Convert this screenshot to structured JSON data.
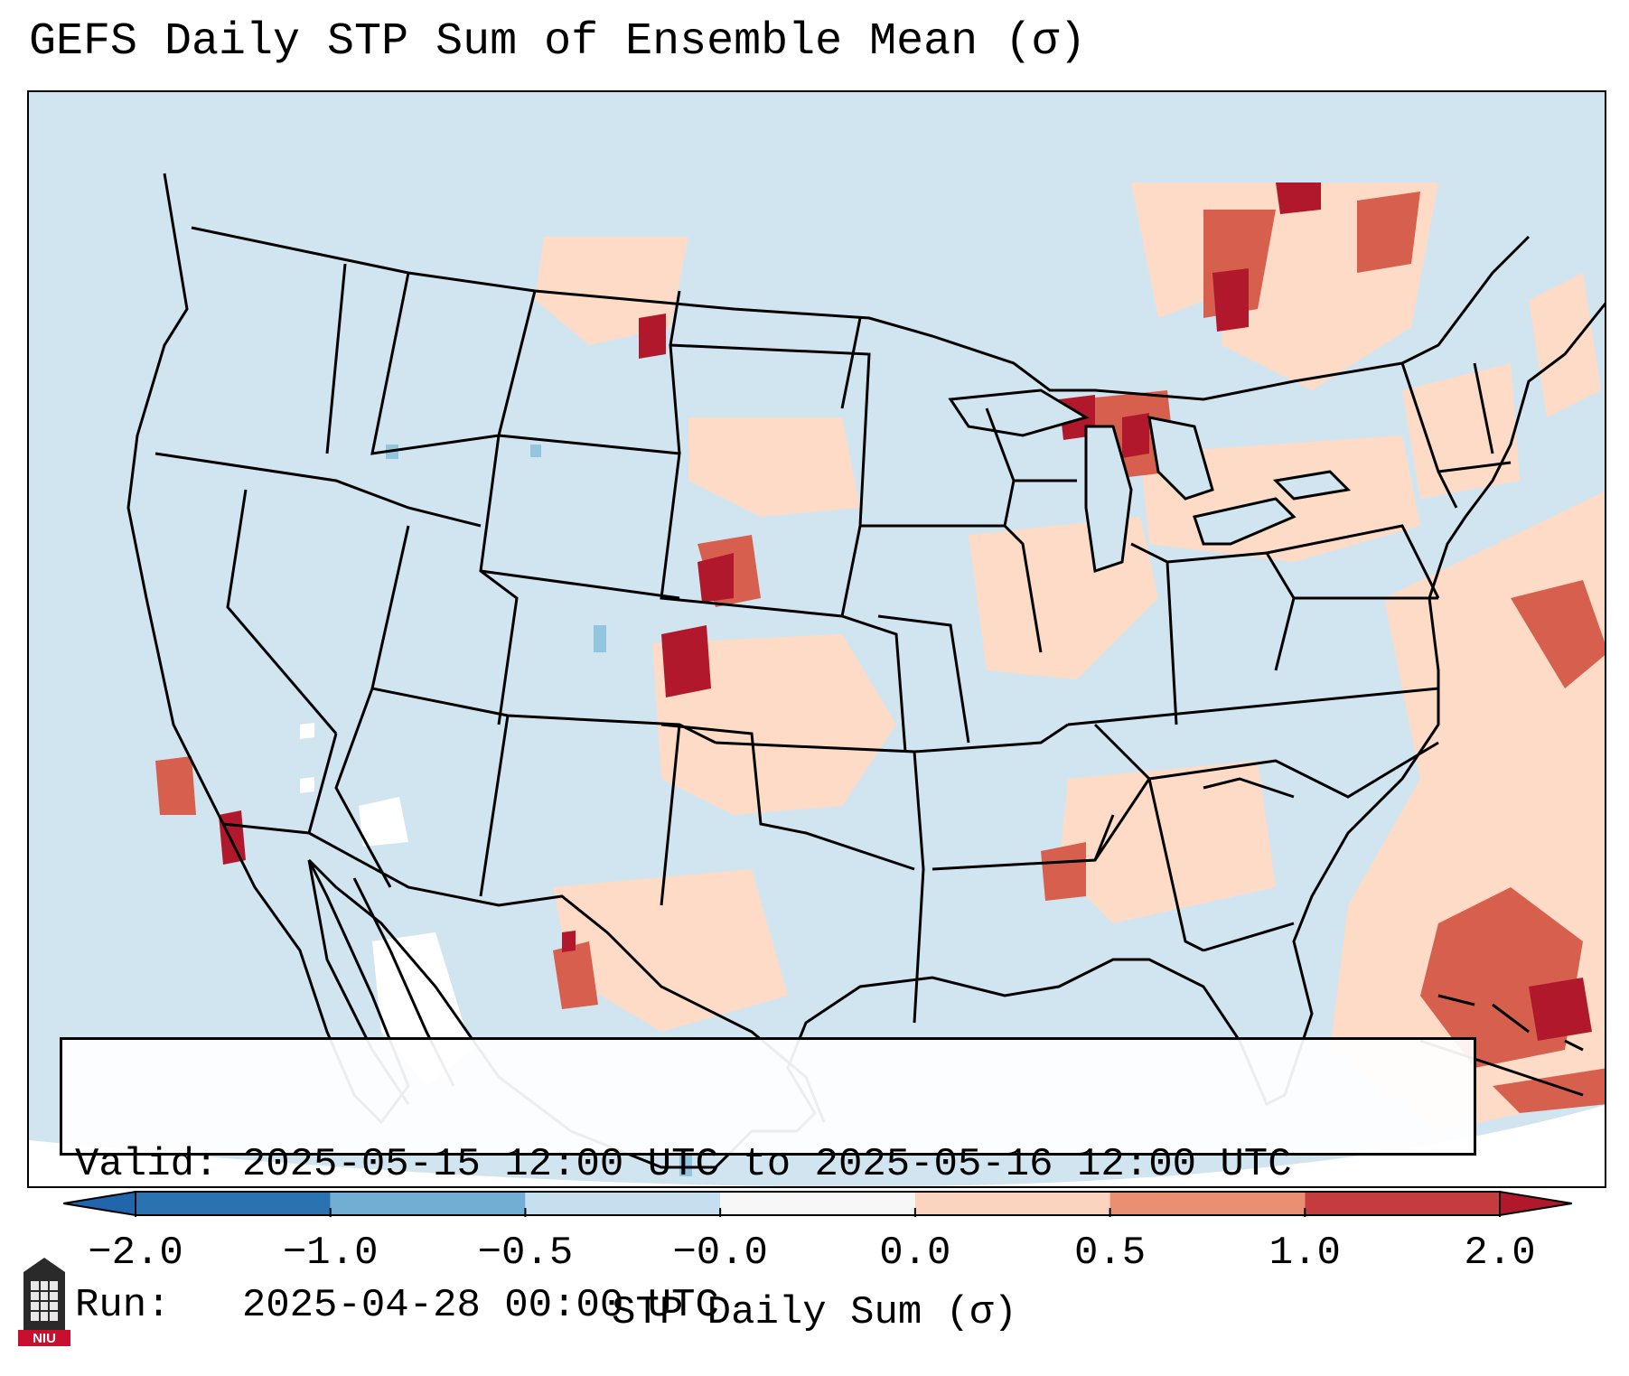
{
  "title": "GEFS Daily STP Sum of Ensemble Mean (σ)",
  "info": {
    "valid": "Valid: 2025-05-15 12:00 UTC to 2025-05-16 12:00 UTC",
    "run": "Run:   2025-04-28 00:00 UTC"
  },
  "colorbar": {
    "label": "STP Daily Sum (σ)",
    "ticks": [
      "−2.0",
      "−1.0",
      "−0.5",
      "−0.0",
      "0.0",
      "0.5",
      "1.0",
      "2.0"
    ],
    "colors": [
      "#2b72b1",
      "#72aed3",
      "#c5dff0",
      "#f7f7f7",
      "#fcd3bf",
      "#eb8f72",
      "#c53c3e"
    ],
    "extend_low_color": "#2166ac",
    "extend_high_color": "#b2182b"
  },
  "map": {
    "background_color": "#d1e5f0",
    "outside_color": "#ffffff",
    "anomaly_colors": {
      "strong_positive": "#b2182b",
      "positive": "#d6604d",
      "weak_positive": "#fddbc7",
      "negative": "#92c5de",
      "near_zero": "#ffffff"
    }
  },
  "logo": {
    "text": "NIU",
    "color": "#c8102e"
  }
}
